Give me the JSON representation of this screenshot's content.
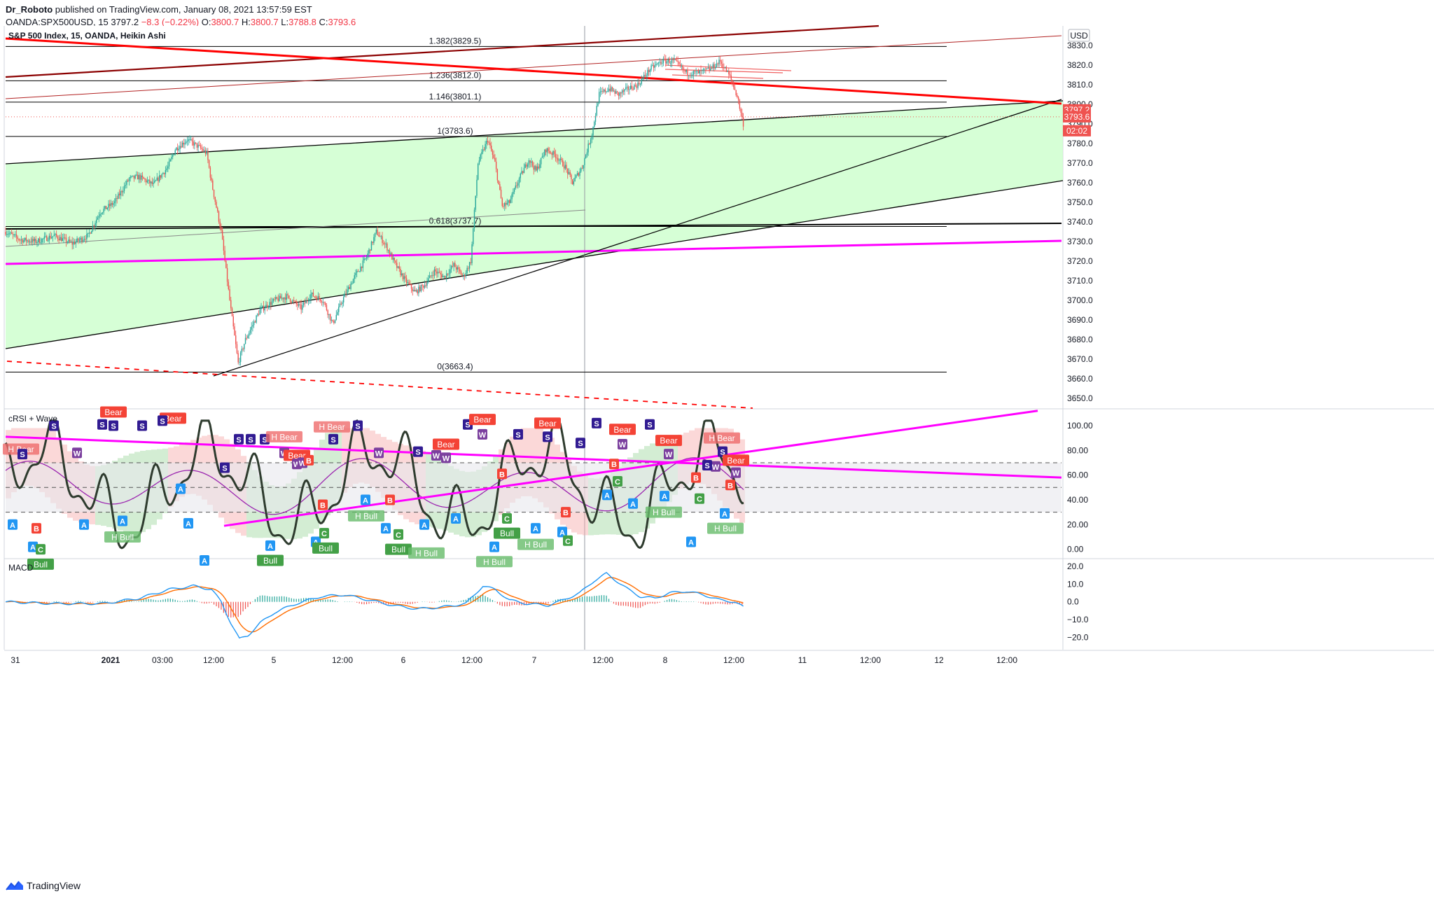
{
  "header": {
    "author": "Dr_Roboto",
    "published": "published on TradingView.com, January 08, 2021 13:57:59 EST",
    "symbol": "OANDA:SPX500USD, 15",
    "last": "3797.2",
    "change": "−8.3 (−0.22%)",
    "o_label": "O:",
    "o": "3800.7",
    "h_label": "H:",
    "h": "3800.7",
    "l_label": "L:",
    "l": "3788.8",
    "c_label": "C:",
    "c": "3793.6"
  },
  "footer": {
    "brand": "TradingView"
  },
  "colors": {
    "bull": "#26a69a",
    "bear": "#ef5350",
    "channel_fill": "#ccffcc",
    "magenta": "#ff00ff",
    "red_line": "#ff0000",
    "dark_red": "#8b0000",
    "macd_line": "#2196f3",
    "signal_line": "#ff6d00",
    "crsi": "#2e3b2e"
  },
  "chart_data": [
    {
      "type": "candlestick",
      "title": "S&P 500 Index, 15, OANDA, Heikin Ashi",
      "currency": "USD",
      "ylim": [
        3645,
        3840
      ],
      "y_ticks": [
        "3830.0",
        "3820.0",
        "3810.0",
        "3800.0",
        "3790.0",
        "3780.0",
        "3770.0",
        "3760.0",
        "3750.0",
        "3740.0",
        "3730.0",
        "3720.0",
        "3710.0",
        "3700.0",
        "3690.0",
        "3680.0",
        "3670.0",
        "3660.0",
        "3650.0"
      ],
      "x_ticks": [
        "31",
        "2021",
        "03:00",
        "12:00",
        "5",
        "12:00",
        "6",
        "12:00",
        "7",
        "12:00",
        "8",
        "12:00",
        "11",
        "12:00",
        "12",
        "12:00"
      ],
      "price_anchors": [
        [
          0,
          3735
        ],
        [
          12,
          3731
        ],
        [
          25,
          3730
        ],
        [
          40,
          3733
        ],
        [
          55,
          3729
        ],
        [
          68,
          3733
        ],
        [
          78,
          3745
        ],
        [
          90,
          3750
        ],
        [
          102,
          3762
        ],
        [
          110,
          3763
        ],
        [
          122,
          3759
        ],
        [
          134,
          3768
        ],
        [
          140,
          3777
        ],
        [
          150,
          3782
        ],
        [
          160,
          3778
        ],
        [
          166,
          3775
        ],
        [
          170,
          3760
        ],
        [
          178,
          3735
        ],
        [
          186,
          3695
        ],
        [
          192,
          3668
        ],
        [
          198,
          3680
        ],
        [
          210,
          3695
        ],
        [
          222,
          3700
        ],
        [
          232,
          3702
        ],
        [
          244,
          3696
        ],
        [
          252,
          3703
        ],
        [
          262,
          3700
        ],
        [
          270,
          3688
        ],
        [
          278,
          3700
        ],
        [
          288,
          3712
        ],
        [
          298,
          3722
        ],
        [
          306,
          3735
        ],
        [
          314,
          3728
        ],
        [
          322,
          3718
        ],
        [
          330,
          3710
        ],
        [
          338,
          3704
        ],
        [
          346,
          3708
        ],
        [
          354,
          3715
        ],
        [
          362,
          3712
        ],
        [
          370,
          3718
        ],
        [
          378,
          3712
        ],
        [
          384,
          3720
        ],
        [
          390,
          3770
        ],
        [
          398,
          3782
        ],
        [
          404,
          3770
        ],
        [
          410,
          3748
        ],
        [
          416,
          3750
        ],
        [
          424,
          3762
        ],
        [
          432,
          3772
        ],
        [
          438,
          3766
        ],
        [
          446,
          3777
        ],
        [
          454,
          3774
        ],
        [
          462,
          3768
        ],
        [
          468,
          3760
        ],
        [
          476,
          3768
        ],
        [
          484,
          3785
        ],
        [
          490,
          3805
        ],
        [
          498,
          3808
        ],
        [
          506,
          3805
        ],
        [
          514,
          3808
        ],
        [
          522,
          3810
        ],
        [
          532,
          3818
        ],
        [
          542,
          3822
        ],
        [
          552,
          3822
        ],
        [
          562,
          3816
        ],
        [
          572,
          3816
        ],
        [
          582,
          3818
        ],
        [
          590,
          3822
        ],
        [
          598,
          3814
        ],
        [
          604,
          3804
        ],
        [
          609,
          3790
        ]
      ],
      "fib_levels": [
        {
          "label": "1.382(3829.5)",
          "value": 3829.5
        },
        {
          "label": "1.236(3812.0)",
          "value": 3812.0
        },
        {
          "label": "1.146(3801.1)",
          "value": 3801.1
        },
        {
          "label": "1(3783.6)",
          "value": 3783.6
        },
        {
          "label": "0.618(3737.7)",
          "value": 3737.7
        },
        {
          "label": "0(3663.4)",
          "value": 3663.4
        }
      ],
      "price_labels": [
        {
          "text": "3797.2",
          "value": 3797.2
        },
        {
          "text": "3793.6",
          "value": 3793.6
        },
        {
          "text": "02:02",
          "value": 3786.5
        }
      ],
      "last_price": 3793.6
    },
    {
      "type": "line",
      "title": "cRSI + Wave",
      "ylim": [
        -7,
        113
      ],
      "y_ticks": [
        "100.00",
        "80.00",
        "60.00",
        "40.00",
        "20.00",
        "0.00"
      ],
      "levels": [
        70,
        50,
        30
      ],
      "signals": [
        {
          "t": "A",
          "x": 18,
          "y": 20
        },
        {
          "t": "H Bear",
          "x": 30,
          "y": 81
        },
        {
          "t": "S",
          "x": 32,
          "y": 77
        },
        {
          "t": "A",
          "x": 47,
          "y": 2
        },
        {
          "t": "B",
          "x": 52,
          "y": 17
        },
        {
          "t": "C",
          "x": 58,
          "y": 0
        },
        {
          "t": "Bull",
          "x": 58,
          "y": -12
        },
        {
          "t": "S",
          "x": 77,
          "y": 100
        },
        {
          "t": "W",
          "x": 110,
          "y": 78
        },
        {
          "t": "A",
          "x": 120,
          "y": 20
        },
        {
          "t": "S",
          "x": 146,
          "y": 101
        },
        {
          "t": "Bear",
          "x": 162,
          "y": 111
        },
        {
          "t": "S",
          "x": 162,
          "y": 100
        },
        {
          "t": "A",
          "x": 175,
          "y": 23
        },
        {
          "t": "H Bull",
          "x": 175,
          "y": 10
        },
        {
          "t": "S",
          "x": 203,
          "y": 100
        },
        {
          "t": "Bear",
          "x": 247,
          "y": 106
        },
        {
          "t": "S",
          "x": 232,
          "y": 104
        },
        {
          "t": "A",
          "x": 258,
          "y": 49
        },
        {
          "t": "A",
          "x": 269,
          "y": 21
        },
        {
          "t": "A",
          "x": 292,
          "y": -9
        },
        {
          "t": "S",
          "x": 321,
          "y": 66
        },
        {
          "t": "S",
          "x": 341,
          "y": 89
        },
        {
          "t": "S",
          "x": 358,
          "y": 89
        },
        {
          "t": "S",
          "x": 378,
          "y": 89
        },
        {
          "t": "A",
          "x": 386,
          "y": 3
        },
        {
          "t": "Bull",
          "x": 386,
          "y": -9
        },
        {
          "t": "H Bear",
          "x": 406,
          "y": 91
        },
        {
          "t": "W",
          "x": 406,
          "y": 78
        },
        {
          "t": "Bear",
          "x": 424,
          "y": 76
        },
        {
          "t": "W",
          "x": 424,
          "y": 69
        },
        {
          "t": "W",
          "x": 432,
          "y": 70
        },
        {
          "t": "B",
          "x": 441,
          "y": 72
        },
        {
          "t": "A",
          "x": 451,
          "y": 6
        },
        {
          "t": "B",
          "x": 461,
          "y": 36
        },
        {
          "t": "C",
          "x": 463,
          "y": 13
        },
        {
          "t": "Bull",
          "x": 465,
          "y": 1
        },
        {
          "t": "S",
          "x": 476,
          "y": 89
        },
        {
          "t": "H Bear",
          "x": 474,
          "y": 99
        },
        {
          "t": "S",
          "x": 511,
          "y": 100
        },
        {
          "t": "H Bull",
          "x": 523,
          "y": 27
        },
        {
          "t": "A",
          "x": 522,
          "y": 40
        },
        {
          "t": "W",
          "x": 541,
          "y": 78
        },
        {
          "t": "B",
          "x": 557,
          "y": 40
        },
        {
          "t": "A",
          "x": 551,
          "y": 17
        },
        {
          "t": "C",
          "x": 569,
          "y": 12
        },
        {
          "t": "Bull",
          "x": 569,
          "y": 0
        },
        {
          "t": "S",
          "x": 597,
          "y": 79
        },
        {
          "t": "A",
          "x": 606,
          "y": 20
        },
        {
          "t": "H Bull",
          "x": 609,
          "y": -3
        },
        {
          "t": "W",
          "x": 623,
          "y": 76
        },
        {
          "t": "W",
          "x": 637,
          "y": 74
        },
        {
          "t": "Bear",
          "x": 637,
          "y": 85
        },
        {
          "t": "A",
          "x": 651,
          "y": 25
        },
        {
          "t": "S",
          "x": 668,
          "y": 101
        },
        {
          "t": "Bear",
          "x": 689,
          "y": 105
        },
        {
          "t": "W",
          "x": 689,
          "y": 93
        },
        {
          "t": "B",
          "x": 717,
          "y": 61
        },
        {
          "t": "C",
          "x": 724,
          "y": 25
        },
        {
          "t": "Bull",
          "x": 724,
          "y": 13
        },
        {
          "t": "A",
          "x": 706,
          "y": 2
        },
        {
          "t": "H Bull",
          "x": 706,
          "y": -10
        },
        {
          "t": "S",
          "x": 740,
          "y": 93
        },
        {
          "t": "A",
          "x": 765,
          "y": 17
        },
        {
          "t": "H Bull",
          "x": 765,
          "y": 4
        },
        {
          "t": "Bear",
          "x": 782,
          "y": 102
        },
        {
          "t": "S",
          "x": 782,
          "y": 91
        },
        {
          "t": "A",
          "x": 803,
          "y": 14
        },
        {
          "t": "B",
          "x": 808,
          "y": 30
        },
        {
          "t": "C",
          "x": 811,
          "y": 7
        },
        {
          "t": "S",
          "x": 829,
          "y": 86
        },
        {
          "t": "S",
          "x": 852,
          "y": 102
        },
        {
          "t": "A",
          "x": 867,
          "y": 44
        },
        {
          "t": "B",
          "x": 877,
          "y": 69
        },
        {
          "t": "C",
          "x": 882,
          "y": 55
        },
        {
          "t": "Bear",
          "x": 889,
          "y": 97
        },
        {
          "t": "W",
          "x": 889,
          "y": 85
        },
        {
          "t": "A",
          "x": 904,
          "y": 37
        },
        {
          "t": "S",
          "x": 928,
          "y": 101
        },
        {
          "t": "Bear",
          "x": 955,
          "y": 88
        },
        {
          "t": "W",
          "x": 955,
          "y": 77
        },
        {
          "t": "A",
          "x": 949,
          "y": 43
        },
        {
          "t": "H Bull",
          "x": 948,
          "y": 30
        },
        {
          "t": "B",
          "x": 994,
          "y": 58
        },
        {
          "t": "C",
          "x": 999,
          "y": 41
        },
        {
          "t": "A",
          "x": 987,
          "y": 6
        },
        {
          "t": "H Bear",
          "x": 1031,
          "y": 90
        },
        {
          "t": "S",
          "x": 1032,
          "y": 79
        },
        {
          "t": "W",
          "x": 1022,
          "y": 67
        },
        {
          "t": "S",
          "x": 1010,
          "y": 68
        },
        {
          "t": "Bear",
          "x": 1051,
          "y": 72
        },
        {
          "t": "W",
          "x": 1051,
          "y": 62
        },
        {
          "t": "B",
          "x": 1043,
          "y": 52
        },
        {
          "t": "A",
          "x": 1035,
          "y": 29
        },
        {
          "t": "H Bull",
          "x": 1036,
          "y": 17
        }
      ]
    },
    {
      "type": "line",
      "title": "MACD",
      "ylim": [
        -27,
        24
      ],
      "y_ticks": [
        "20.0",
        "10.0",
        "0.0",
        "−10.0",
        "−20.0"
      ],
      "macd_anchors": [
        [
          0,
          0
        ],
        [
          40,
          -1
        ],
        [
          80,
          -1
        ],
        [
          110,
          2
        ],
        [
          135,
          7
        ],
        [
          155,
          9
        ],
        [
          170,
          7
        ],
        [
          178,
          0
        ],
        [
          186,
          -12
        ],
        [
          193,
          -21
        ],
        [
          200,
          -19
        ],
        [
          210,
          -12
        ],
        [
          222,
          -6
        ],
        [
          240,
          -1
        ],
        [
          260,
          3
        ],
        [
          280,
          4
        ],
        [
          300,
          1
        ],
        [
          320,
          -2
        ],
        [
          340,
          -4
        ],
        [
          360,
          -3
        ],
        [
          380,
          -1
        ],
        [
          394,
          9
        ],
        [
          404,
          7
        ],
        [
          416,
          1
        ],
        [
          430,
          -1
        ],
        [
          448,
          -2
        ],
        [
          460,
          1
        ],
        [
          474,
          5
        ],
        [
          486,
          12
        ],
        [
          496,
          16
        ],
        [
          504,
          12
        ],
        [
          514,
          7
        ],
        [
          524,
          3
        ],
        [
          536,
          2
        ],
        [
          548,
          5
        ],
        [
          562,
          6
        ],
        [
          576,
          4
        ],
        [
          590,
          1
        ],
        [
          602,
          0
        ],
        [
          609,
          -3
        ]
      ]
    }
  ]
}
